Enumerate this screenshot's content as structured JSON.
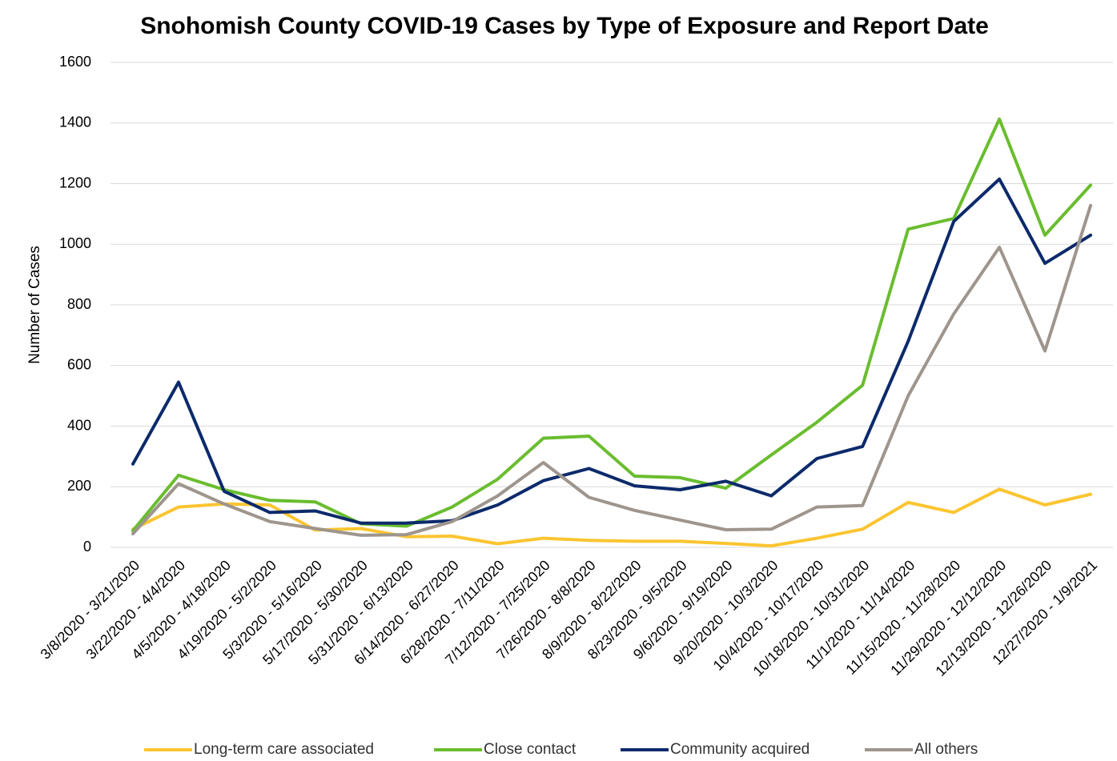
{
  "chart_data": {
    "type": "line",
    "title": "Snohomish County COVID-19 Cases by Type of Exposure and Report Date",
    "y_label": "Number of Cases",
    "categories": [
      "3/8/2020 - 3/21/2020",
      "3/22/2020 - 4/4/2020",
      "4/5/2020 - 4/18/2020",
      "4/19/2020 - 5/2/2020",
      "5/3/2020 - 5/16/2020",
      "5/17/2020 - 5/30/2020",
      "5/31/2020 - 6/13/2020",
      "6/14/2020 - 6/27/2020",
      "6/28/2020 - 7/11/2020",
      "7/12/2020 - 7/25/2020",
      "7/26/2020 - 8/8/2020",
      "8/9/2020 - 8/22/2020",
      "8/23/2020 - 9/5/2020",
      "9/6/2020 - 9/19/2020",
      "9/20/2020 - 10/3/2020",
      "10/4/2020 - 10/17/2020",
      "10/18/2020 - 10/31/2020",
      "11/1/2020 - 11/14/2020",
      "11/15/2020 - 11/28/2020",
      "11/29/2020 - 12/12/2020",
      "12/13/2020 - 12/26/2020",
      "12/27/2020 - 1/9/2021"
    ],
    "series": [
      {
        "name": "Long-term care associated",
        "color": "#fbc531",
        "values": [
          60,
          133,
          143,
          140,
          57,
          62,
          35,
          37,
          12,
          30,
          23,
          20,
          20,
          13,
          5,
          30,
          60,
          148,
          115,
          192,
          140,
          175
        ]
      },
      {
        "name": "Close contact",
        "color": "#6abd2f",
        "values": [
          55,
          238,
          190,
          155,
          150,
          78,
          70,
          133,
          225,
          360,
          367,
          235,
          230,
          195,
          305,
          413,
          535,
          1050,
          1085,
          1413,
          1030,
          1195
        ]
      },
      {
        "name": "Community acquired",
        "color": "#0c2a6b",
        "values": [
          275,
          545,
          185,
          115,
          120,
          80,
          80,
          88,
          140,
          220,
          260,
          203,
          190,
          218,
          170,
          293,
          333,
          680,
          1075,
          1215,
          937,
          1030
        ]
      },
      {
        "name": "All others",
        "color": "#9e958d",
        "values": [
          45,
          210,
          143,
          85,
          62,
          40,
          42,
          85,
          170,
          280,
          165,
          122,
          90,
          58,
          60,
          133,
          138,
          500,
          770,
          990,
          648,
          1128
        ]
      }
    ],
    "ylim": [
      0,
      1600
    ],
    "yticks": [
      0,
      200,
      400,
      600,
      800,
      1000,
      1200,
      1400,
      1600
    ],
    "grid": true,
    "legend": "bottom"
  }
}
